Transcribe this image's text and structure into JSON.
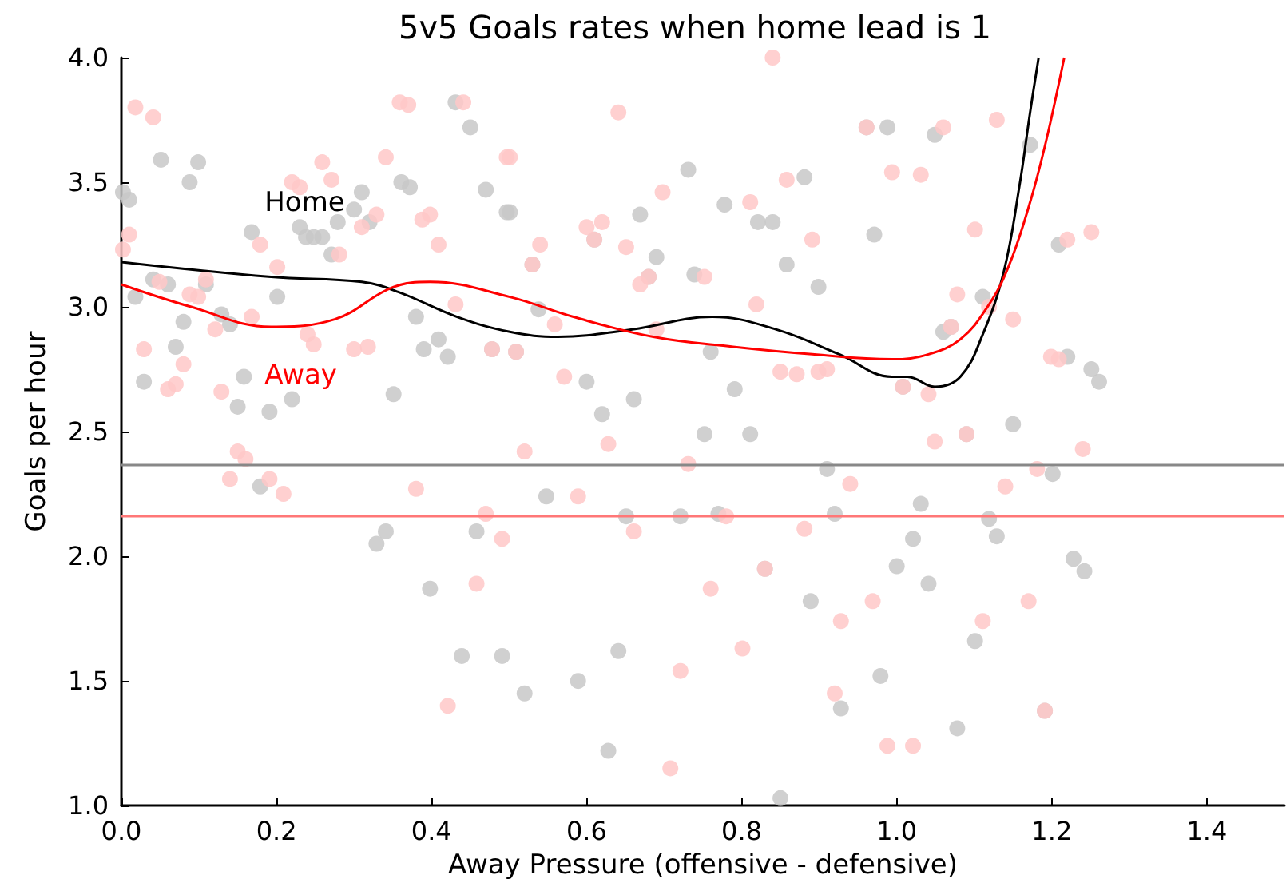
{
  "chart_data": {
    "type": "scatter",
    "title": "5v5 Goals rates when home lead is 1",
    "xlabel": "Away Pressure (offensive - defensive)",
    "ylabel": "Goals per hour",
    "xlim": [
      0,
      1.5
    ],
    "xticks": [
      {
        "value": 0,
        "label": "0.0"
      },
      {
        "value": 0.2,
        "label": "0.2"
      },
      {
        "value": 0.4,
        "label": "0.4"
      },
      {
        "value": 0.6,
        "label": "0.6"
      },
      {
        "value": 0.8,
        "label": "0.8"
      },
      {
        "value": 1,
        "label": "1.0"
      },
      {
        "value": 1.2,
        "label": "1.2"
      },
      {
        "value": 1.4,
        "label": "1.4"
      }
    ],
    "ylim": [
      1,
      4
    ],
    "yticks": [
      {
        "value": 1,
        "label": "1.0"
      },
      {
        "value": 1.5,
        "label": "1.5"
      },
      {
        "value": 2,
        "label": "2.0"
      },
      {
        "value": 2.5,
        "label": "2.5"
      },
      {
        "value": 3,
        "label": "3.0"
      },
      {
        "value": 3.5,
        "label": "3.5"
      },
      {
        "value": 4,
        "label": "4.0"
      }
    ],
    "grid": false,
    "legend": false,
    "marker": "circle",
    "ref_lines": [
      {
        "axis": "y",
        "value": 2.37,
        "color": "#888888"
      },
      {
        "axis": "y",
        "value": 2.16,
        "color": "#ff7777"
      }
    ],
    "series": [
      {
        "color": "#c8c8c8",
        "x": [
          0.179,
          0.329,
          0.341,
          0.398,
          0.439,
          0.458,
          0.491,
          0.752,
          0.811,
          0.548,
          0.651,
          0.721,
          0.77,
          0.91,
          0.92,
          0.83,
          0.889,
          0.641,
          0.52,
          0.589,
          0.979,
          0.928,
          0.628,
          0.85,
          1.15,
          1.09,
          1.201,
          1.031,
          1.119,
          1.129,
          1.021,
          1.0,
          1.228,
          1.242,
          1.041,
          1.101,
          1.078,
          1.191,
          0.002,
          0.01,
          0.051,
          0.099,
          0.088,
          0.168,
          0.23,
          0.238,
          0.248,
          0.259,
          0.279,
          0.3,
          0.31,
          0.32,
          0.271,
          0.361,
          0.372,
          0.431,
          0.45,
          0.47,
          0.497,
          0.041,
          0.06,
          0.018,
          0.109,
          0.201,
          0.08,
          0.129,
          0.14,
          0.07,
          0.029,
          0.158,
          0.15,
          0.191,
          0.22,
          0.351,
          0.38,
          0.39,
          0.409,
          0.421,
          0.478,
          0.501,
          0.731,
          0.778,
          0.821,
          0.84,
          0.881,
          0.988,
          0.858,
          0.899,
          0.971,
          0.669,
          0.69,
          0.739,
          0.68,
          0.61,
          0.53,
          0.538,
          0.509,
          0.76,
          0.6,
          0.661,
          0.791,
          0.62,
          0.961,
          1.049,
          1.172,
          1.209,
          1.111,
          1.06,
          1.07,
          1.22,
          1.251,
          1.261,
          1.008
        ],
        "values": [
          2.28,
          2.05,
          2.1,
          1.87,
          1.6,
          2.1,
          1.6,
          2.49,
          2.49,
          2.24,
          2.16,
          2.16,
          2.17,
          2.35,
          2.17,
          1.95,
          1.82,
          1.62,
          1.45,
          1.5,
          1.52,
          1.39,
          1.22,
          1.03,
          2.53,
          2.49,
          2.33,
          2.21,
          2.15,
          2.08,
          2.07,
          1.96,
          1.99,
          1.94,
          1.89,
          1.66,
          1.31,
          1.38,
          3.46,
          3.43,
          3.59,
          3.58,
          3.5,
          3.3,
          3.32,
          3.28,
          3.28,
          3.28,
          3.34,
          3.39,
          3.46,
          3.34,
          3.21,
          3.5,
          3.48,
          3.82,
          3.72,
          3.47,
          3.38,
          3.11,
          3.09,
          3.04,
          3.09,
          3.04,
          2.94,
          2.97,
          2.93,
          2.84,
          2.7,
          2.72,
          2.6,
          2.58,
          2.63,
          2.65,
          2.96,
          2.83,
          2.87,
          2.8,
          2.83,
          3.38,
          3.55,
          3.41,
          3.34,
          3.34,
          3.52,
          3.72,
          3.17,
          3.08,
          3.29,
          3.37,
          3.2,
          3.13,
          3.12,
          3.27,
          3.17,
          2.99,
          2.82,
          2.82,
          2.7,
          2.63,
          2.67,
          2.57,
          3.72,
          3.69,
          3.65,
          3.25,
          3.04,
          2.9,
          2.92,
          2.8,
          2.75,
          2.7,
          2.68
        ]
      },
      {
        "color": "#ffc8c8",
        "x": [
          0.15,
          0.16,
          0.14,
          0.191,
          0.209,
          0.38,
          0.47,
          0.491,
          0.458,
          0.421,
          0.52,
          0.628,
          0.731,
          0.94,
          0.589,
          0.78,
          0.661,
          0.881,
          0.76,
          0.969,
          0.928,
          0.801,
          0.721,
          0.92,
          0.988,
          0.708,
          0.83,
          1.049,
          1.24,
          1.181,
          1.14,
          1.17,
          1.111,
          1.021,
          1.09,
          1.191,
          0.018,
          0.041,
          0.359,
          0.37,
          0.441,
          0.259,
          0.341,
          0.22,
          0.23,
          0.271,
          0.497,
          0.01,
          0.002,
          0.179,
          0.329,
          0.31,
          0.388,
          0.398,
          0.409,
          0.281,
          0.201,
          0.049,
          0.109,
          0.088,
          0.099,
          0.121,
          0.168,
          0.431,
          0.24,
          0.248,
          0.029,
          0.08,
          0.06,
          0.07,
          0.129,
          0.3,
          0.318,
          0.478,
          0.501,
          0.641,
          0.84,
          0.698,
          0.811,
          0.858,
          0.6,
          0.62,
          0.54,
          0.651,
          0.891,
          0.669,
          0.752,
          0.819,
          0.559,
          0.69,
          0.571,
          0.85,
          0.871,
          0.899,
          0.91,
          0.994,
          0.961,
          0.68,
          0.61,
          0.53,
          0.509,
          1.06,
          1.129,
          1.031,
          1.101,
          1.22,
          1.251,
          1.078,
          1.119,
          1.15,
          1.199,
          1.209,
          1.041,
          1.07,
          1.008
        ],
        "values": [
          2.42,
          2.39,
          2.31,
          2.31,
          2.25,
          2.27,
          2.17,
          2.07,
          1.89,
          1.4,
          2.42,
          2.45,
          2.37,
          2.29,
          2.24,
          2.16,
          2.1,
          2.11,
          1.87,
          1.82,
          1.74,
          1.63,
          1.54,
          1.45,
          1.24,
          1.15,
          1.95,
          2.46,
          2.43,
          2.35,
          2.28,
          1.82,
          1.74,
          1.24,
          2.49,
          1.38,
          3.8,
          3.76,
          3.82,
          3.81,
          3.82,
          3.58,
          3.6,
          3.5,
          3.48,
          3.51,
          3.6,
          3.29,
          3.23,
          3.25,
          3.37,
          3.32,
          3.35,
          3.37,
          3.25,
          3.21,
          3.16,
          3.1,
          3.11,
          3.05,
          3.04,
          2.91,
          2.96,
          3.01,
          2.89,
          2.85,
          2.83,
          2.77,
          2.67,
          2.69,
          2.66,
          2.83,
          2.84,
          2.83,
          3.6,
          3.78,
          4.0,
          3.46,
          3.42,
          3.51,
          3.32,
          3.34,
          3.25,
          3.24,
          3.27,
          3.09,
          3.12,
          3.01,
          2.93,
          2.91,
          2.72,
          2.74,
          2.73,
          2.74,
          2.75,
          3.54,
          3.72,
          3.12,
          3.27,
          3.17,
          2.82,
          3.72,
          3.75,
          3.53,
          3.31,
          3.27,
          3.3,
          3.05,
          3.0,
          2.95,
          2.8,
          2.79,
          2.65,
          2.92,
          2.68
        ]
      },
      {
        "type": "line",
        "name": "Home",
        "color": "#000000",
        "marker": "none",
        "x": [
          0,
          0.193,
          0.31,
          0.357,
          0.433,
          0.501,
          0.563,
          0.659,
          0.762,
          0.844,
          0.926,
          0.994,
          1.014,
          1.049,
          1.082,
          1.111,
          1.138,
          1.158,
          1.172,
          1.183
        ],
        "values": [
          3.18,
          3.12,
          3.1,
          3.06,
          2.96,
          2.9,
          2.88,
          2.91,
          2.96,
          2.91,
          2.81,
          2.72,
          2.72,
          2.68,
          2.72,
          2.89,
          3.14,
          3.48,
          3.78,
          4.0
        ]
      },
      {
        "type": "line",
        "name": "Away",
        "color": "#ff0000",
        "marker": "none",
        "x": [
          0,
          0.09,
          0.193,
          0.275,
          0.351,
          0.398,
          0.501,
          0.583,
          0.686,
          0.789,
          0.891,
          0.994,
          1.041,
          1.082,
          1.117,
          1.144,
          1.172,
          1.193,
          1.216
        ],
        "values": [
          3.09,
          3.0,
          2.92,
          2.95,
          3.08,
          3.1,
          3.04,
          2.96,
          2.88,
          2.84,
          2.81,
          2.79,
          2.81,
          2.87,
          3.0,
          3.16,
          3.42,
          3.67,
          4.0
        ]
      }
    ]
  }
}
